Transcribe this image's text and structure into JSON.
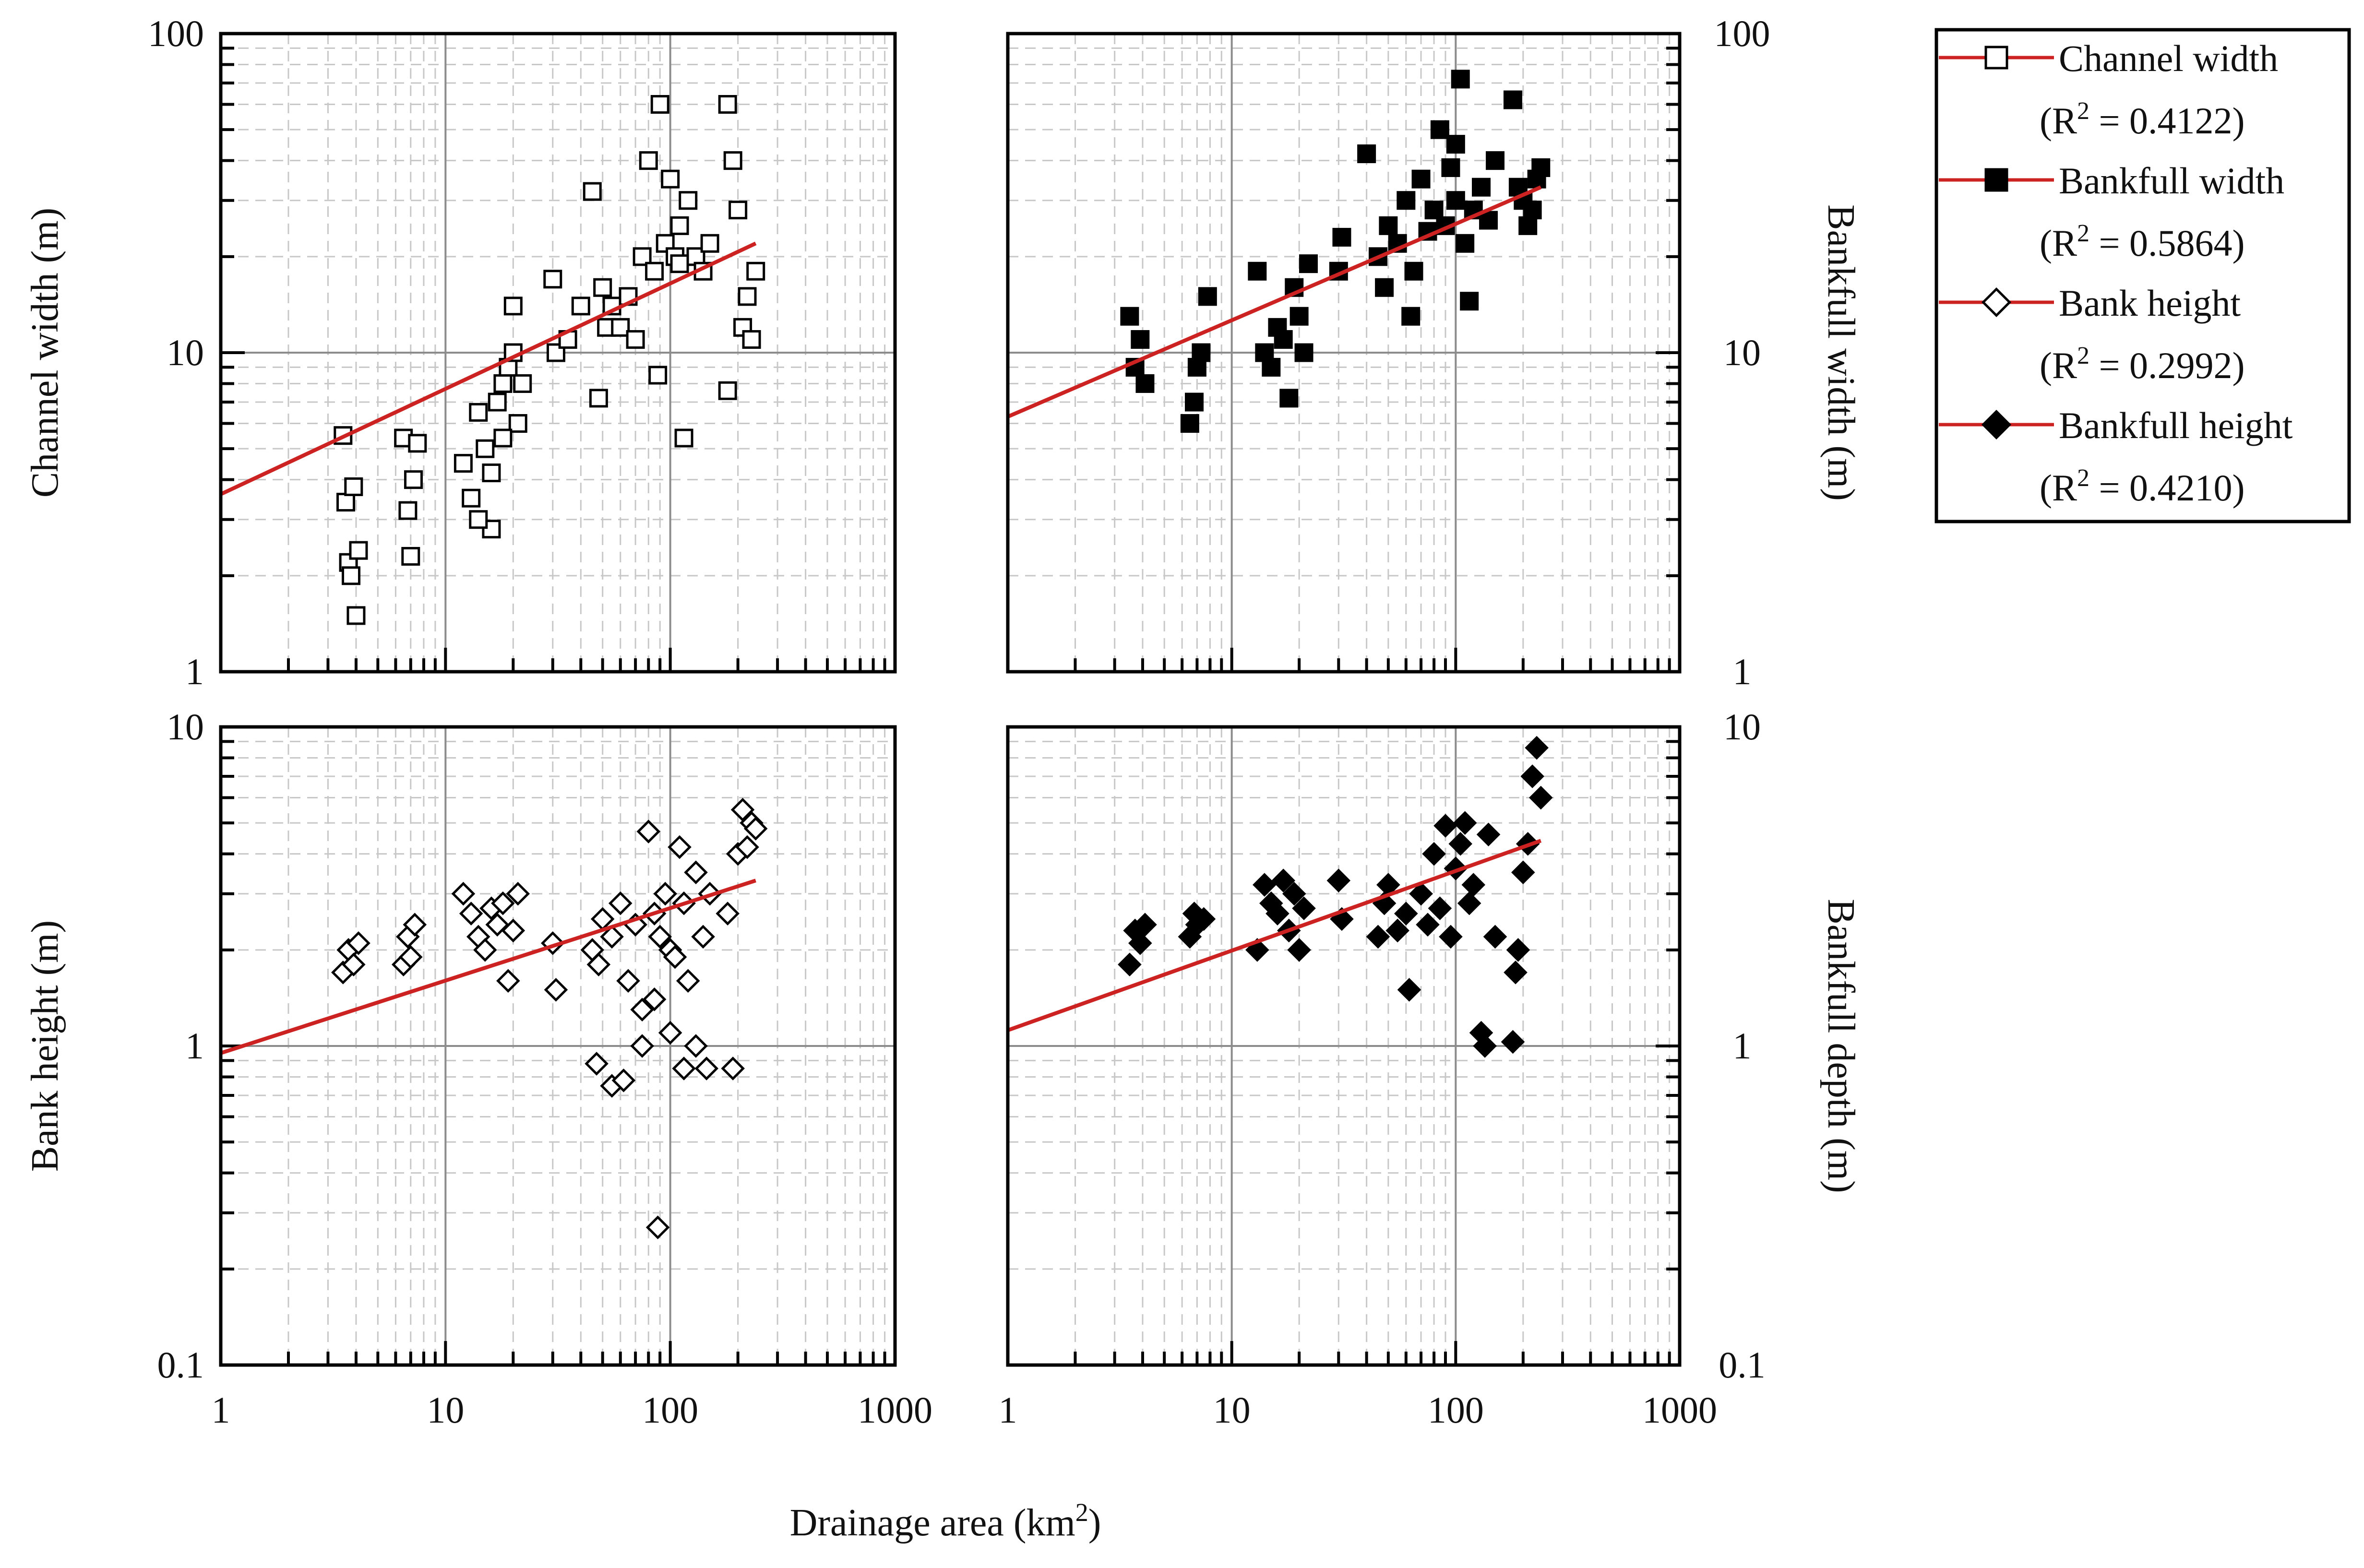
{
  "chart_data": [
    {
      "id": "channel-width",
      "type": "scatter",
      "xscale": "log",
      "yscale": "log",
      "xlim": [
        1,
        1000
      ],
      "ylim": [
        1,
        100
      ],
      "ylabel": "Channel width (m)",
      "ylabel_side": "left",
      "marker": "open-square",
      "x_ticks": [],
      "y_ticks": [
        "100",
        "10",
        "1"
      ],
      "fit": {
        "x": [
          1,
          240
        ],
        "y": [
          3.6,
          22
        ],
        "color": "#cc2222"
      },
      "x": [
        3.5,
        3.6,
        3.7,
        3.8,
        3.9,
        4.0,
        4.1,
        6.5,
        6.8,
        7.0,
        7.2,
        7.5,
        12,
        13,
        14,
        15,
        16,
        17,
        18,
        19,
        20,
        21,
        30,
        31,
        45,
        48,
        50,
        52,
        55,
        60,
        65,
        70,
        75,
        80,
        85,
        90,
        95,
        100,
        105,
        110,
        115,
        120,
        130,
        140,
        150,
        180,
        190,
        200,
        210,
        220,
        230,
        240,
        35,
        40,
        88,
        110,
        180,
        14,
        16,
        18,
        20,
        22
      ],
      "y": [
        5.5,
        3.4,
        2.2,
        2.0,
        3.8,
        1.5,
        2.4,
        5.4,
        3.2,
        2.3,
        4.0,
        5.2,
        4.5,
        3.5,
        6.5,
        5.0,
        2.8,
        7.0,
        8.0,
        9.0,
        14,
        6.0,
        17,
        10,
        32,
        7.2,
        16,
        12,
        14,
        12,
        15,
        11,
        20,
        40,
        18,
        60,
        22,
        35,
        20,
        25,
        5.4,
        30,
        20,
        18,
        22,
        60,
        40,
        28,
        12,
        15,
        11,
        18,
        11,
        14,
        8.5,
        19,
        7.6,
        3.0,
        4.2,
        5.4,
        10,
        8.0
      ],
      "series_count": 1
    },
    {
      "id": "bankfull-width",
      "type": "scatter",
      "xscale": "log",
      "yscale": "log",
      "xlim": [
        1,
        1000
      ],
      "ylim": [
        1,
        100
      ],
      "ylabel": "Bankfull width (m)",
      "ylabel_side": "right",
      "marker": "filled-square",
      "x_ticks": [],
      "y_ticks": [
        "100",
        "10",
        "1"
      ],
      "fit": {
        "x": [
          1,
          240
        ],
        "y": [
          6.3,
          33
        ],
        "color": "#cc2222"
      },
      "x": [
        3.5,
        3.7,
        3.9,
        4.1,
        6.5,
        6.8,
        7.0,
        7.3,
        7.8,
        13,
        14,
        15,
        16,
        17,
        18,
        19,
        20,
        21,
        22,
        30,
        31,
        45,
        48,
        50,
        55,
        60,
        65,
        70,
        80,
        85,
        90,
        95,
        100,
        105,
        110,
        120,
        130,
        140,
        150,
        180,
        190,
        200,
        210,
        220,
        230,
        240,
        40,
        63,
        75,
        100,
        115
      ],
      "y": [
        13,
        9,
        11,
        8,
        6,
        7,
        9,
        10,
        15,
        18,
        10,
        9,
        12,
        11,
        7.2,
        16,
        13,
        10,
        19,
        18,
        23,
        20,
        16,
        25,
        22,
        30,
        18,
        35,
        28,
        50,
        25,
        38,
        30,
        72,
        22,
        28,
        33,
        26,
        40,
        62,
        33,
        30,
        25,
        28,
        35,
        38,
        42,
        13,
        24,
        45,
        14.5
      ],
      "series_count": 1
    },
    {
      "id": "bank-height",
      "type": "scatter",
      "xscale": "log",
      "yscale": "log",
      "xlim": [
        1,
        1000
      ],
      "ylim": [
        0.1,
        10
      ],
      "ylabel": "Bank height (m)",
      "ylabel_side": "left",
      "marker": "open-diamond",
      "x_ticks": [
        "1",
        "10",
        "100",
        "1000"
      ],
      "y_ticks": [
        "10",
        "1",
        "0.1"
      ],
      "fit": {
        "x": [
          1,
          240
        ],
        "y": [
          0.95,
          3.3
        ],
        "color": "#cc2222"
      },
      "x": [
        3.5,
        3.7,
        3.9,
        4.1,
        6.5,
        6.8,
        7.0,
        7.3,
        12,
        13,
        14,
        15,
        16,
        17,
        18,
        19,
        20,
        21,
        30,
        31,
        45,
        48,
        50,
        55,
        60,
        65,
        70,
        75,
        80,
        85,
        88,
        90,
        95,
        100,
        105,
        110,
        115,
        120,
        130,
        140,
        150,
        180,
        190,
        200,
        210,
        220,
        230,
        240,
        47,
        55,
        62,
        75,
        85,
        100,
        115,
        130,
        145
      ],
      "y": [
        1.7,
        2.0,
        1.8,
        2.1,
        1.8,
        2.2,
        1.9,
        2.4,
        3.0,
        2.6,
        2.2,
        2.0,
        2.7,
        2.4,
        2.8,
        1.6,
        2.3,
        3.0,
        2.1,
        1.5,
        2.0,
        1.8,
        2.5,
        2.2,
        2.8,
        1.6,
        2.4,
        1.3,
        4.7,
        2.6,
        0.27,
        2.2,
        3.0,
        2.0,
        1.9,
        4.2,
        2.8,
        1.6,
        3.5,
        2.2,
        3.0,
        2.6,
        0.85,
        4.0,
        5.5,
        4.2,
        5.0,
        4.8,
        0.88,
        0.75,
        0.78,
        1.0,
        1.4,
        1.1,
        0.85,
        1.0,
        0.85
      ],
      "series_count": 1
    },
    {
      "id": "bankfull-depth",
      "type": "scatter",
      "xscale": "log",
      "yscale": "log",
      "xlim": [
        1,
        1000
      ],
      "ylim": [
        0.1,
        10
      ],
      "ylabel": "Bankfull depth (m)",
      "ylabel_side": "right",
      "marker": "filled-diamond",
      "x_ticks": [
        "1",
        "10",
        "100",
        "1000"
      ],
      "y_ticks": [
        "10",
        "1",
        "0.1"
      ],
      "fit": {
        "x": [
          1,
          240
        ],
        "y": [
          1.12,
          4.4
        ],
        "color": "#cc2222"
      },
      "x": [
        3.5,
        3.7,
        3.9,
        4.1,
        6.5,
        6.8,
        7.0,
        7.5,
        13,
        14,
        15,
        16,
        17,
        18,
        19,
        20,
        21,
        30,
        31,
        45,
        48,
        50,
        55,
        60,
        62,
        70,
        75,
        80,
        85,
        90,
        95,
        100,
        105,
        110,
        115,
        120,
        130,
        135,
        140,
        150,
        180,
        185,
        190,
        200,
        210,
        220,
        230,
        240
      ],
      "y": [
        1.8,
        2.3,
        2.1,
        2.4,
        2.2,
        2.6,
        2.4,
        2.5,
        2.0,
        3.2,
        2.8,
        2.6,
        3.3,
        2.3,
        3.0,
        2.0,
        2.7,
        3.3,
        2.5,
        2.2,
        2.8,
        3.2,
        2.3,
        2.6,
        1.5,
        3.0,
        2.4,
        4.0,
        2.7,
        4.9,
        2.2,
        3.6,
        4.3,
        5.0,
        2.8,
        3.2,
        1.1,
        1.0,
        4.6,
        2.2,
        1.03,
        1.7,
        2.0,
        3.5,
        4.3,
        7.0,
        8.6,
        6.0
      ],
      "series_count": 1
    }
  ],
  "xlabel": "Drainage area (km2)",
  "xlabel_main": "Drainage area (km",
  "xlabel_sup": "2",
  "xlabel_end": ")",
  "legend": {
    "entries": [
      {
        "label": "Channel width",
        "r2_pre": "(R",
        "r2_sup": "2",
        "r2_post": " = 0.4122)",
        "marker": "open-square"
      },
      {
        "label": "Bankfull width",
        "r2_pre": "(R",
        "r2_sup": "2",
        "r2_post": " = 0.5864)",
        "marker": "filled-square"
      },
      {
        "label": "Bank height",
        "r2_pre": "(R",
        "r2_sup": "2",
        "r2_post": " = 0.2992)",
        "marker": "open-diamond"
      },
      {
        "label": "Bankfull height",
        "r2_pre": "(R",
        "r2_sup": "2",
        "r2_post": " = 0.4210)",
        "marker": "filled-diamond"
      }
    ],
    "line_color": "#cc2222"
  }
}
